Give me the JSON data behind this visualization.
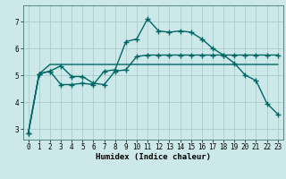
{
  "xlabel": "Humidex (Indice chaleur)",
  "bg_color": "#cce8e8",
  "grid_color": "#aacccc",
  "line_color": "#006666",
  "line_width": 1.0,
  "marker": "+",
  "marker_size": 4,
  "marker_lw": 1.0,
  "x_ticks": [
    0,
    1,
    2,
    3,
    4,
    5,
    6,
    7,
    8,
    9,
    10,
    11,
    12,
    13,
    14,
    15,
    16,
    17,
    18,
    19,
    20,
    21,
    22,
    23
  ],
  "y_ticks": [
    3,
    4,
    5,
    6,
    7
  ],
  "ylim": [
    2.6,
    7.6
  ],
  "xlim": [
    -0.5,
    23.5
  ],
  "series": [
    [
      2.85,
      5.05,
      5.4,
      5.4,
      5.4,
      5.4,
      5.4,
      5.4,
      5.4,
      5.4,
      5.4,
      5.4,
      5.4,
      5.4,
      5.4,
      5.4,
      5.4,
      5.4,
      5.4,
      5.4,
      5.4,
      5.4,
      5.4,
      5.4
    ],
    [
      2.85,
      5.05,
      5.15,
      5.35,
      4.95,
      4.95,
      4.7,
      4.65,
      5.15,
      5.2,
      5.7,
      5.75,
      5.75,
      5.75,
      5.75,
      5.75,
      5.75,
      5.75,
      5.75,
      5.75,
      5.75,
      5.75,
      5.75,
      5.75
    ],
    [
      2.85,
      5.05,
      5.15,
      4.65,
      4.65,
      4.7,
      4.65,
      5.15,
      5.2,
      6.25,
      6.35,
      7.1,
      6.65,
      6.6,
      6.65,
      6.6,
      6.35,
      6.0,
      5.75,
      5.45,
      5.0,
      4.8,
      3.95,
      3.55
    ]
  ],
  "series_markers": [
    false,
    true,
    true
  ],
  "tick_fontsize": 5.5,
  "xlabel_fontsize": 6.5
}
